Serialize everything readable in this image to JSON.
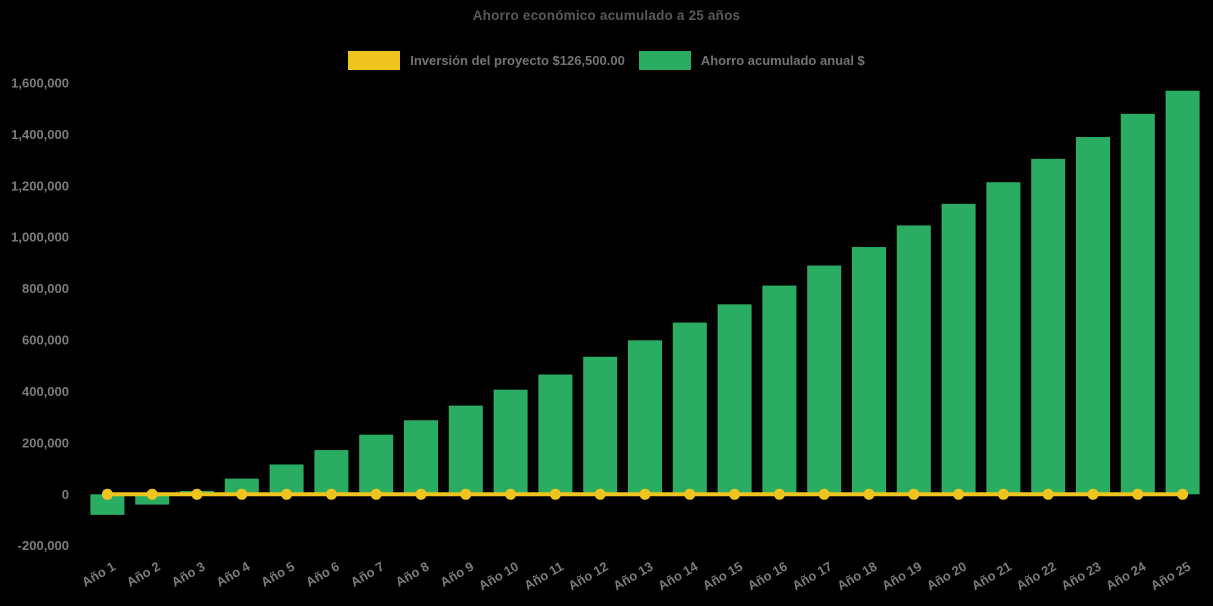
{
  "chart": {
    "title": "Ahorro económico acumulado a 25 años",
    "legend": [
      {
        "label": "Inversión del proyecto $126,500.00",
        "color": "#F0C41E"
      },
      {
        "label": "Ahorro acumulado anual $",
        "color": "#2BAC63"
      }
    ]
  },
  "chart_data": {
    "type": "bar",
    "title": "Ahorro económico acumulado a 25 años",
    "categories": [
      "Año 1",
      "Año 2",
      "Año 3",
      "Año 4",
      "Año 5",
      "Año 6",
      "Año 7",
      "Año 8",
      "Año 9",
      "Año 10",
      "Año 11",
      "Año 12",
      "Año 13",
      "Año 14",
      "Año 15",
      "Año 16",
      "Año 17",
      "Año 18",
      "Año 19",
      "Año 20",
      "Año 21",
      "Año 22",
      "Año 23",
      "Año 24",
      "Año 25"
    ],
    "series": [
      {
        "name": "Ahorro acumulado anual $",
        "type": "bar",
        "color": "#2BAC63",
        "values": [
          -80000,
          -40000,
          13000,
          61000,
          116000,
          172000,
          232000,
          288000,
          345000,
          407000,
          466000,
          535000,
          599000,
          668000,
          739000,
          812000,
          890000,
          962000,
          1046000,
          1130000,
          1214000,
          1305000,
          1390000,
          1480000,
          1570000
        ]
      },
      {
        "name": "Inversión del proyecto $126,500.00",
        "type": "line",
        "color": "#F0C41E",
        "marker": "circle",
        "investment_amount": 126500,
        "values": [
          0,
          0,
          0,
          0,
          0,
          0,
          0,
          0,
          0,
          0,
          0,
          0,
          0,
          0,
          0,
          0,
          0,
          0,
          0,
          0,
          0,
          0,
          0,
          0,
          0
        ]
      }
    ],
    "xlabel": "",
    "ylabel": "",
    "ylim": [
      -200000,
      1600000
    ],
    "yticks": [
      1600000,
      1400000,
      1200000,
      1000000,
      800000,
      600000,
      400000,
      200000,
      0,
      -200000
    ],
    "ytick_labels": [
      "1,600,000",
      "1,400,000",
      "1,200,000",
      "1,000,000",
      "800,000",
      "600,000",
      "400,000",
      "200,000",
      "0",
      "-200,000"
    ],
    "grid": false,
    "legend_position": "top",
    "background_color": "#000000",
    "text_colors": {
      "title": "#595959",
      "axis": "#7C7C7C",
      "legend": "#737373"
    }
  }
}
